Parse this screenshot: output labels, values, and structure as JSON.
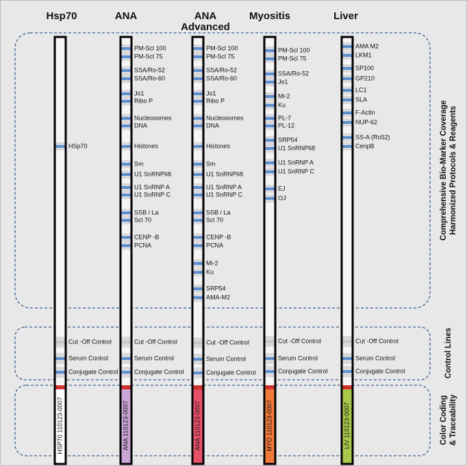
{
  "columns": [
    {
      "title": [
        "Hsp70"
      ],
      "antigens": [
        "HSp70"
      ],
      "controls": [
        "Cut -Off Control",
        "Serum Control",
        "Conjugate Control"
      ],
      "code": "HSP70 110123-0007"
    },
    {
      "title": [
        "ANA"
      ],
      "antigens": [
        "PM-Scl 100",
        "PM-Scl 75",
        "SSA/Ro-52",
        "SSA/Ro-60",
        "Jo1",
        "Ribo P",
        "Nucleosomes",
        "DNA",
        "Histones",
        "Sm",
        "U1 SnRNP68",
        "U1 SnRNP A",
        "U1 SnRNP C",
        "SSB / La",
        "Scl 70",
        "CENP -B",
        "PCNA"
      ],
      "controls": [
        "Cut -Off Control",
        "Serum Control",
        "Conjugate Control"
      ],
      "code": "ANA 110123-0007"
    },
    {
      "title": [
        "ANA",
        "Advanced"
      ],
      "antigens": [
        "PM-Scl 100",
        "PM-Scl 75",
        "SSA/Ro-52",
        "SSA/Ro-60",
        "Jo1",
        "Ribo P",
        "Nucleosomes",
        "DNA",
        "Histones",
        "Sm",
        "U1 SnRNP68",
        "U1 SnRNP A",
        "U1 SnRNP C",
        "SSB / La",
        "Scl 70",
        "CENP -B",
        "PCNA",
        "Mi-2",
        "Ku",
        "SRP54",
        "AMA-M2"
      ],
      "controls": [
        "Cut -Off Control",
        "Serum Control",
        "Conjugate Control"
      ],
      "code": "ANA 110123-0007"
    },
    {
      "title": [
        "Myositis"
      ],
      "antigens": [
        "PM-Scl 100",
        "PM-Scl 75",
        "SSA/Ro-52",
        "Jo1",
        "Mi-2",
        "Ku",
        "PL-7",
        "PL-12",
        "SRP54",
        "U1 SnRNP68",
        "U1 SnRNP A",
        "U1 SnRNP C",
        "EJ",
        "OJ"
      ],
      "controls": [
        "Cut -Off Control",
        "Serum Control",
        "Conjugate Control"
      ],
      "code": "MYO 110123-0007"
    },
    {
      "title": [
        "Liver"
      ],
      "antigens": [
        "AMA M2",
        "LKM1",
        "SP100",
        "GP210",
        "LC1",
        "SLA",
        "F-Actin",
        "NUP-62",
        "SS-A (Ro52)",
        "CenpB"
      ],
      "controls": [
        "Cut -Off Control",
        "Serum Control",
        "Conjugate Control"
      ],
      "code": "LIV 110123-0007"
    }
  ],
  "sections": [
    {
      "labels": [
        "Comprehensive Bio-Marker Coverage",
        "Harmonized Protocols & Reagents"
      ]
    },
    {
      "labels": [
        "Control Lines"
      ]
    },
    {
      "labels": [
        "Color Coding",
        "& Traceability"
      ]
    }
  ]
}
